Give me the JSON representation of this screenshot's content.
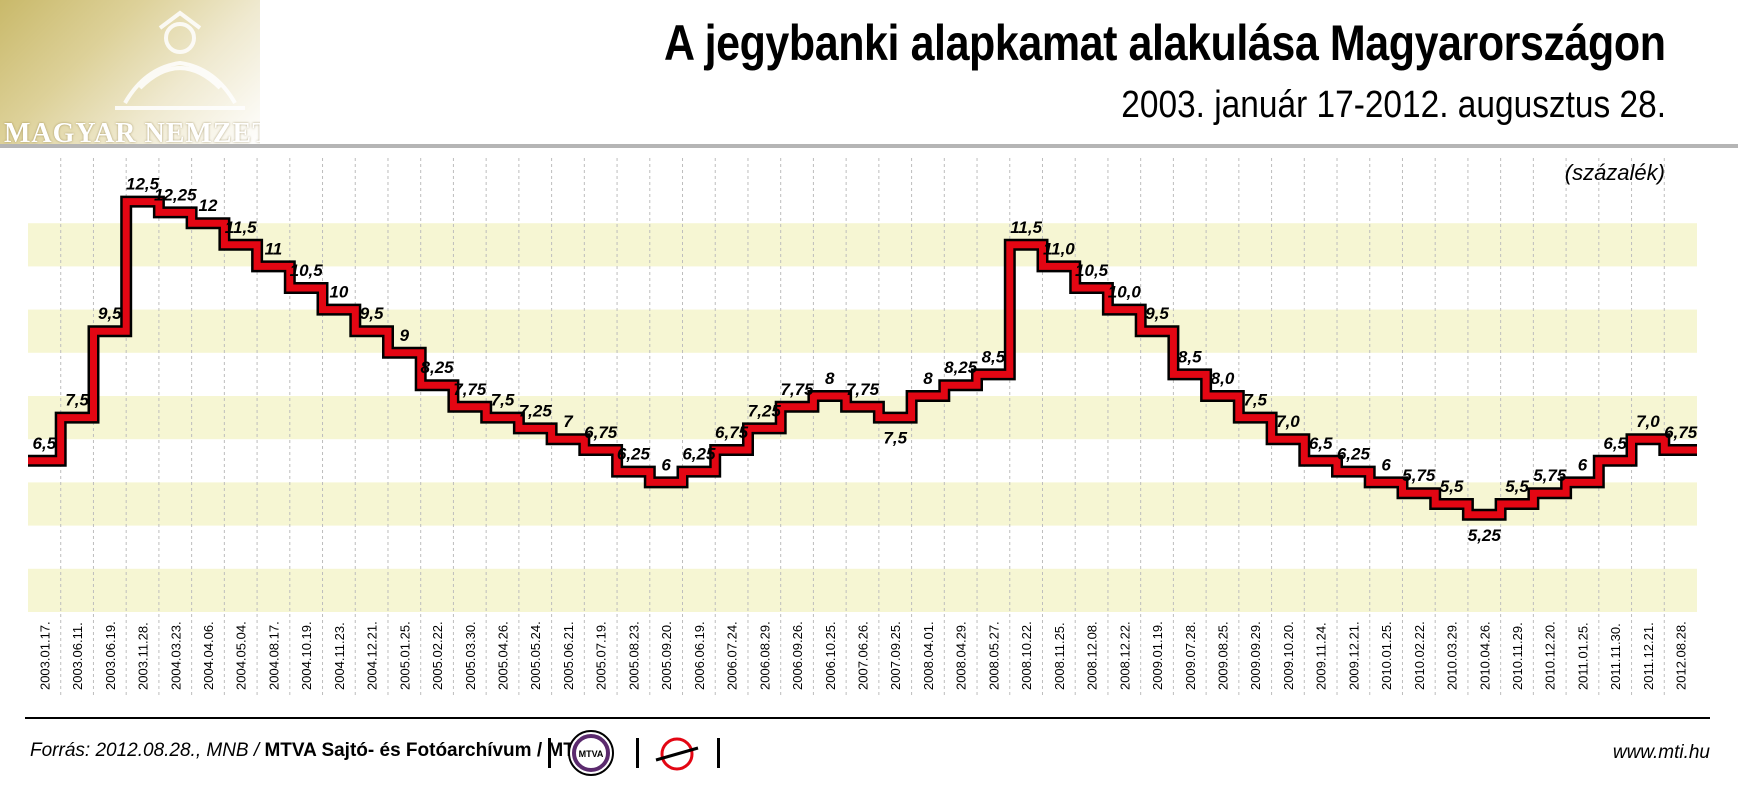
{
  "header": {
    "logo_text": "MAGYAR NEMZETI",
    "title": "A jegybanki alapkamat alakulása Magyarországon",
    "subtitle": "2003. január 17-2012. augusztus 28."
  },
  "chart_data": {
    "type": "line",
    "step": true,
    "unit_label": "(százalék)",
    "title": "A jegybanki alapkamat alakulása Magyarországon",
    "subtitle": "2003. január 17-2012. augusztus 28.",
    "grid": "alternating horizontal bands",
    "series_color": "#e30613",
    "dates": [
      "2003.01.17.",
      "2003.06.11.",
      "2003.06.19.",
      "2003.11.28.",
      "2004.03.23.",
      "2004.04.06.",
      "2004.05.04.",
      "2004.08.17.",
      "2004.10.19.",
      "2004.11.23.",
      "2004.12.21.",
      "2005.01.25.",
      "2005.02.22.",
      "2005.03.30.",
      "2005.04.26.",
      "2005.05.24.",
      "2005.06.21.",
      "2005.07.19.",
      "2005.08.23.",
      "2005.09.20.",
      "2006.06.19.",
      "2006.07.24.",
      "2006.08.29.",
      "2006.09.26.",
      "2006.10.25.",
      "2007.06.26.",
      "2007.09.25.",
      "2008.04.01.",
      "2008.04.29.",
      "2008.05.27.",
      "2008.10.22.",
      "2008.11.25.",
      "2008.12.08.",
      "2008.12.22.",
      "2009.01.19.",
      "2009.07.28.",
      "2009.08.25.",
      "2009.09.29.",
      "2009.10.20.",
      "2009.11.24.",
      "2009.12.21.",
      "2010.01.25.",
      "2010.02.22.",
      "2010.03.29.",
      "2010.04.26.",
      "2010.11.29.",
      "2010.12.20.",
      "2011.01.25.",
      "2011.11.30.",
      "2011.12.21.",
      "2012.08.28."
    ],
    "values": [
      6.5,
      7.5,
      9.5,
      12.5,
      12.25,
      12,
      11.5,
      11,
      10.5,
      10,
      9.5,
      9,
      8.25,
      7.75,
      7.5,
      7.25,
      7,
      6.75,
      6.25,
      6,
      6.25,
      6.75,
      7.25,
      7.75,
      8,
      7.75,
      7.5,
      8,
      8.25,
      8.5,
      11.5,
      11,
      10.5,
      10,
      9.5,
      8.5,
      8,
      7.5,
      7,
      6.5,
      6.25,
      6,
      5.75,
      5.5,
      5.25,
      5.5,
      5.75,
      6,
      6.5,
      7,
      6.75
    ],
    "value_labels": [
      "6,5",
      "7,5",
      "9,5",
      "12,5",
      "12,25",
      "12",
      "11,5",
      "11",
      "10,5",
      "10",
      "9,5",
      "9",
      "8,25",
      "7,75",
      "7,5",
      "7,25",
      "7",
      "6,75",
      "6,25",
      "6",
      "6,25",
      "6,75",
      "7,25",
      "7,75",
      "8",
      "7,75",
      "7,5",
      "8",
      "8,25",
      "8,5",
      "11,5",
      "11,0",
      "10,5",
      "10,0",
      "9,5",
      "8,5",
      "8,0",
      "7,5",
      "7,0",
      "6,5",
      "6,25",
      "6",
      "5,75",
      "5,5",
      "5,25",
      "5,5",
      "5,75",
      "6",
      "6,5",
      "7,0",
      "6,75"
    ],
    "label_below": [
      26,
      44
    ],
    "ylim": [
      3.0,
      13.0
    ]
  },
  "footer": {
    "source_prefix": "Forrás: 2012.08.28., MNB / ",
    "source_bold": "MTVA Sajtó- és Fotóarchívum / MTI",
    "mtva_logo_text": "MTVA",
    "website": "www.mti.hu"
  }
}
